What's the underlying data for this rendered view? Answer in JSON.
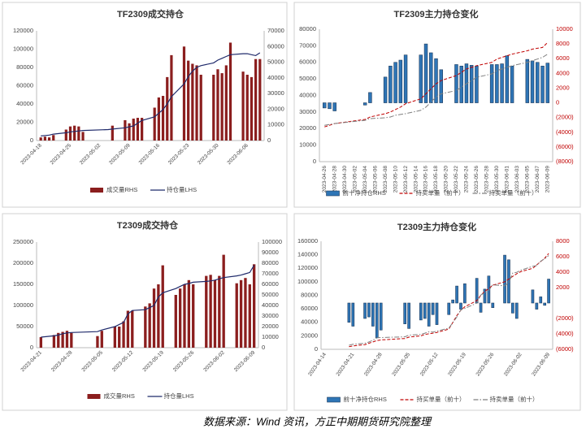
{
  "caption": "数据来源：Wind 资讯，方正中期期货研究院整理",
  "chart_data": [
    {
      "type": "combo",
      "title": "TF2309成交持仓",
      "x": [
        "2023-04-18",
        "2023-04-19",
        "2023-04-20",
        "2023-04-21",
        "2023-04-24",
        "2023-04-25",
        "2023-04-26",
        "2023-04-27",
        "2023-04-28",
        "2023-05-04",
        "2023-05-05",
        "2023-05-08",
        "2023-05-09",
        "2023-05-10",
        "2023-05-11",
        "2023-05-12",
        "2023-05-15",
        "2023-05-16",
        "2023-05-17",
        "2023-05-18",
        "2023-05-19",
        "2023-05-22",
        "2023-05-23",
        "2023-05-24",
        "2023-05-25",
        "2023-05-26",
        "2023-05-29",
        "2023-05-30",
        "2023-05-31",
        "2023-06-01",
        "2023-06-02",
        "2023-06-05",
        "2023-06-06",
        "2023-06-07",
        "2023-06-08",
        "2023-06-09"
      ],
      "xlim": [
        "2023-04-17",
        "2023-06-10"
      ],
      "xticks": [
        "2023-04-18",
        "2023-04-25",
        "2023-05-02",
        "2023-05-09",
        "2023-05-16",
        "2023-05-23",
        "2023-05-30",
        "2023-06-06"
      ],
      "ylim": [
        0,
        120000
      ],
      "yticks": [
        0,
        20000,
        40000,
        60000,
        80000,
        100000,
        120000
      ],
      "y2lim": [
        0,
        70000
      ],
      "y2ticks": [
        0,
        10000,
        20000,
        30000,
        40000,
        50000,
        60000,
        70000
      ],
      "series": [
        {
          "name": "成交量RHS",
          "type": "bar",
          "axis": "y2",
          "color": "#8b1e1e",
          "values": [
            2000,
            2500,
            2000,
            3500,
            7000,
            9000,
            9500,
            9000,
            5500,
            null,
            9500,
            13000,
            11000,
            14000,
            14500,
            14500,
            21000,
            27500,
            28500,
            40500,
            54500,
            60000,
            51000,
            49000,
            48000,
            42000,
            42000,
            45500,
            43000,
            48000,
            62500,
            44000,
            42000,
            40500,
            52000,
            52000
          ]
        },
        {
          "name": "持仓量LHS",
          "type": "line",
          "color": "#1f2a6b",
          "values": [
            5000,
            5500,
            6000,
            7000,
            8500,
            9500,
            10000,
            10500,
            11000,
            12000,
            12500,
            14000,
            15000,
            16000,
            19000,
            22000,
            26000,
            30000,
            34000,
            40000,
            48000,
            62000,
            70000,
            76000,
            80000,
            82000,
            85000,
            88000,
            90000,
            92000,
            94000,
            95000,
            95000,
            94000,
            93000,
            96000
          ]
        }
      ]
    },
    {
      "type": "combo",
      "title": "TF2309主力持仓变化",
      "x": [
        "2023-04-26",
        "2023-04-27",
        "2023-04-28",
        "2023-05-04",
        "2023-05-05",
        "2023-05-08",
        "2023-05-09",
        "2023-05-10",
        "2023-05-11",
        "2023-05-12",
        "2023-05-15",
        "2023-05-16",
        "2023-05-17",
        "2023-05-18",
        "2023-05-19",
        "2023-05-22",
        "2023-05-23",
        "2023-05-24",
        "2023-05-25",
        "2023-05-26",
        "2023-05-29",
        "2023-05-30",
        "2023-05-31",
        "2023-06-01",
        "2023-06-02",
        "2023-06-05",
        "2023-06-06",
        "2023-06-07",
        "2023-06-08",
        "2023-06-09"
      ],
      "xlim": [
        "2023-04-25",
        "2023-06-10"
      ],
      "xticks": [
        "2023-04-26",
        "2023-04-28",
        "2023-04-30",
        "2023-05-02",
        "2023-05-04",
        "2023-05-06",
        "2023-05-08",
        "2023-05-10",
        "2023-05-12",
        "2023-05-14",
        "2023-05-16",
        "2023-05-18",
        "2023-05-20",
        "2023-05-22",
        "2023-05-24",
        "2023-05-26",
        "2023-05-28",
        "2023-05-30",
        "2023-06-01",
        "2023-06-03",
        "2023-06-05",
        "2023-06-07",
        "2023-06-09"
      ],
      "ylim": [
        0,
        80000
      ],
      "yticks": [
        0,
        10000,
        20000,
        30000,
        40000,
        50000,
        60000,
        70000,
        80000
      ],
      "y2lim": [
        -8000,
        10000
      ],
      "y2ticks": [
        10000,
        8000,
        6000,
        4000,
        2000,
        0,
        {
          "value": -2000,
          "label": "(2000)"
        },
        {
          "value": -4000,
          "label": "(4000)"
        },
        {
          "value": -6000,
          "label": "(6000)"
        },
        {
          "value": -8000,
          "label": "(8000)"
        }
      ],
      "y2tick_color": "#c00000",
      "series": [
        {
          "name": "前十净持仓RHS",
          "type": "bar",
          "axis": "y2",
          "color": "#2e75b6",
          "edge": "#1f3b5c",
          "values": [
            -700,
            -800,
            -1100,
            -300,
            1400,
            3500,
            5000,
            5500,
            5800,
            6500,
            6500,
            8000,
            6800,
            6000,
            4500,
            5200,
            5000,
            5300,
            5100,
            5000,
            5200,
            5200,
            5300,
            6400,
            5000,
            5900,
            5700,
            5500,
            5000,
            5400
          ]
        },
        {
          "name": "持买单量（前十）",
          "type": "line",
          "dash": "dashed",
          "color": "#c00000",
          "values": [
            21000,
            22000,
            23000,
            25500,
            27000,
            29000,
            30000,
            31500,
            33000,
            35000,
            38000,
            41000,
            44000,
            47000,
            49000,
            52000,
            54000,
            56000,
            57000,
            58000,
            60000,
            62000,
            63000,
            64000,
            65000,
            67000,
            68000,
            68500,
            69000,
            72000
          ]
        },
        {
          "name": "持卖单量（前十）",
          "type": "line",
          "dash": "dashdot",
          "color": "#7f7f7f",
          "values": [
            22000,
            22500,
            23000,
            25000,
            26000,
            26500,
            27000,
            28000,
            28500,
            29000,
            31000,
            33000,
            36000,
            39000,
            41000,
            43000,
            45000,
            47000,
            49000,
            51000,
            53000,
            55000,
            56000,
            57000,
            58000,
            60000,
            61000,
            62000,
            63000,
            65000
          ]
        }
      ]
    },
    {
      "type": "combo",
      "title": "T2309成交持仓",
      "x": [
        "2023-04-21",
        "2023-04-24",
        "2023-04-25",
        "2023-04-26",
        "2023-04-27",
        "2023-04-28",
        "2023-05-04",
        "2023-05-05",
        "2023-05-08",
        "2023-05-09",
        "2023-05-10",
        "2023-05-11",
        "2023-05-12",
        "2023-05-15",
        "2023-05-16",
        "2023-05-17",
        "2023-05-18",
        "2023-05-19",
        "2023-05-22",
        "2023-05-23",
        "2023-05-24",
        "2023-05-25",
        "2023-05-26",
        "2023-05-29",
        "2023-05-30",
        "2023-05-31",
        "2023-06-01",
        "2023-06-02",
        "2023-06-05",
        "2023-06-06",
        "2023-06-07",
        "2023-06-08",
        "2023-06-09"
      ],
      "xlim": [
        "2023-04-20",
        "2023-06-10"
      ],
      "xticks": [
        "2023-04-21",
        "2023-04-28",
        "2023-05-05",
        "2023-05-12",
        "2023-05-19",
        "2023-05-26",
        "2023-06-02",
        "2023-06-09"
      ],
      "ylim": [
        0,
        250000
      ],
      "yticks": [
        0,
        50000,
        100000,
        150000,
        200000,
        250000
      ],
      "y2lim": [
        0,
        100000
      ],
      "y2ticks": [
        0,
        10000,
        20000,
        30000,
        40000,
        50000,
        60000,
        70000,
        80000,
        90000,
        100000
      ],
      "series": [
        {
          "name": "成交量RHS",
          "type": "bar",
          "axis": "y2",
          "color": "#8b1e1e",
          "values": [
            10000,
            12000,
            14000,
            15000,
            16000,
            14000,
            11000,
            16000,
            20000,
            20000,
            25000,
            35000,
            35000,
            39000,
            42000,
            56000,
            60000,
            78000,
            50000,
            56000,
            60000,
            64000,
            60000,
            68000,
            69000,
            64000,
            68000,
            88000,
            61000,
            64000,
            66000,
            60000,
            79000
          ]
        },
        {
          "name": "持仓量LHS",
          "type": "line",
          "color": "#1f2a6b",
          "values": [
            25000,
            28000,
            30000,
            33000,
            35000,
            36000,
            38000,
            42000,
            50000,
            55000,
            60000,
            80000,
            88000,
            90000,
            95000,
            100000,
            120000,
            130000,
            140000,
            145000,
            150000,
            152000,
            155000,
            157000,
            158000,
            160000,
            163000,
            166000,
            170000,
            172000,
            175000,
            178000,
            195000
          ]
        }
      ]
    },
    {
      "type": "combo",
      "title": "T2309主力持仓变化",
      "x": [
        "2023-04-20",
        "2023-04-21",
        "2023-04-24",
        "2023-04-25",
        "2023-04-26",
        "2023-04-27",
        "2023-04-28",
        "2023-05-04",
        "2023-05-05",
        "2023-05-08",
        "2023-05-09",
        "2023-05-10",
        "2023-05-11",
        "2023-05-12",
        "2023-05-15",
        "2023-05-16",
        "2023-05-17",
        "2023-05-18",
        "2023-05-19",
        "2023-05-22",
        "2023-05-23",
        "2023-05-24",
        "2023-05-25",
        "2023-05-26",
        "2023-05-29",
        "2023-05-30",
        "2023-05-31",
        "2023-06-01",
        "2023-06-02",
        "2023-06-05",
        "2023-06-06",
        "2023-06-07",
        "2023-06-08",
        "2023-06-09"
      ],
      "xlim": [
        "2023-04-13",
        "2023-06-10"
      ],
      "xticks": [
        "2023-04-14",
        "2023-04-21",
        "2023-04-28",
        "2023-05-05",
        "2023-05-12",
        "2023-05-19",
        "2023-05-26",
        "2023-06-02",
        "2023-06-09"
      ],
      "ylim": [
        0,
        160000
      ],
      "yticks": [
        0,
        20000,
        40000,
        60000,
        80000,
        100000,
        120000,
        140000,
        160000
      ],
      "y2lim": [
        -6000,
        8000
      ],
      "y2ticks": [
        8000,
        6000,
        4000,
        2000,
        {
          "value": -2000,
          "label": "(2000)"
        },
        {
          "value": -4000,
          "label": "(4000)"
        },
        {
          "value": -6000,
          "label": "(6000)"
        }
      ],
      "y2tick_color": "#c00000",
      "series": [
        {
          "name": "前十净持仓RHS",
          "type": "bar",
          "axis": "y2",
          "color": "#2e75b6",
          "edge": "#1f3b5c",
          "values": [
            -2500,
            -3000,
            -2000,
            -1800,
            -3000,
            -4500,
            -3500,
            -2700,
            -3300,
            -2200,
            -2000,
            -3000,
            -1500,
            -2800,
            -1500,
            400,
            2200,
            -800,
            2500,
            3200,
            -1200,
            1800,
            3500,
            -600,
            6200,
            5600,
            -1300,
            -2000,
            null,
            1700,
            -800,
            800,
            -300,
            3100
          ]
        },
        {
          "name": "持买单量（前十）",
          "type": "line",
          "dash": "dashed",
          "color": "#c00000",
          "values": [
            4000,
            5000,
            7000,
            9000,
            11000,
            13000,
            14000,
            16000,
            18000,
            20000,
            22000,
            23000,
            24000,
            25000,
            30000,
            40000,
            50000,
            58000,
            63000,
            72000,
            80000,
            86000,
            90000,
            95000,
            100000,
            104000,
            108000,
            112000,
            115000,
            120000,
            125000,
            130000,
            135000,
            142000
          ]
        },
        {
          "name": "持卖单量（前十）",
          "type": "line",
          "dash": "dashdot",
          "color": "#7f7f7f",
          "values": [
            6000,
            7500,
            9000,
            11000,
            13500,
            17000,
            17500,
            18500,
            21000,
            22000,
            24000,
            26000,
            25500,
            27000,
            31500,
            39500,
            48000,
            58500,
            60500,
            68500,
            80500,
            84000,
            87500,
            95500,
            94000,
            98500,
            113000,
            114000,
            117000,
            123000,
            124000,
            130500,
            134000,
            139000
          ]
        }
      ]
    }
  ]
}
